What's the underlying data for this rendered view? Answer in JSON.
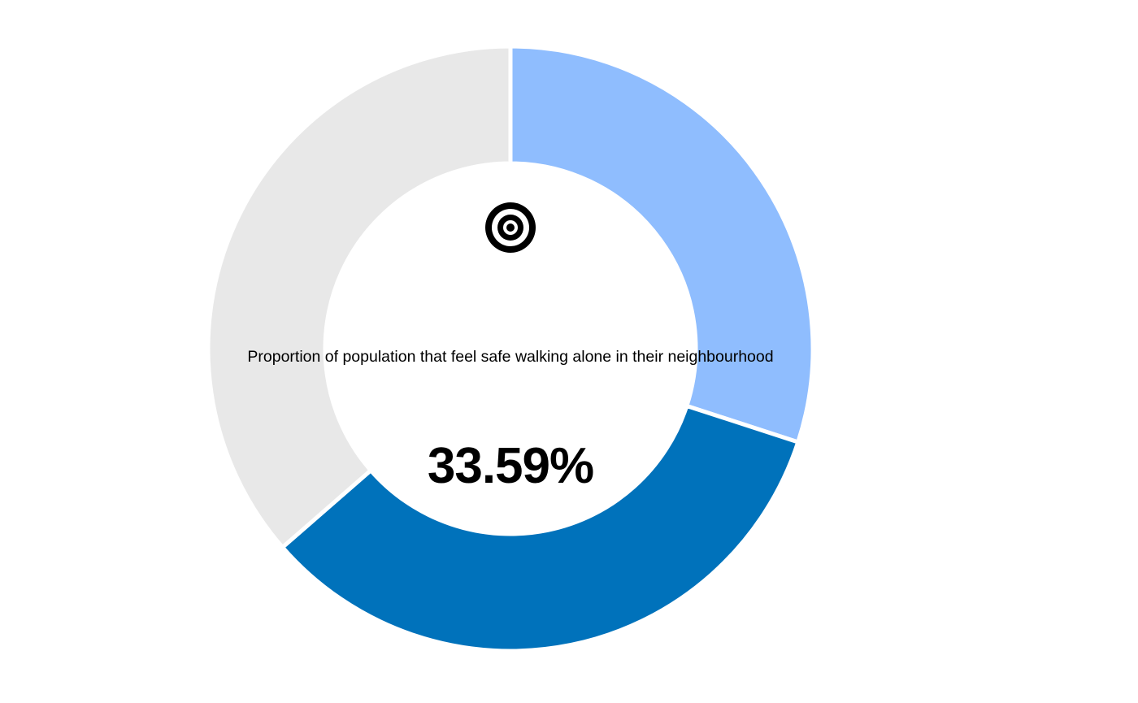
{
  "chart_data": {
    "type": "pie",
    "subtype": "donut",
    "title": "",
    "center_label": "Proportion of population that feel safe walking alone in their neighbourhood",
    "center_value": "33.59%",
    "segments": [
      {
        "value": 30.0,
        "color": "#8fbdfe"
      },
      {
        "value": 33.59,
        "color": "#0072bb"
      },
      {
        "value": 36.41,
        "color": "#e8e8e8"
      }
    ],
    "legend": "none",
    "icon": "target-icon"
  }
}
